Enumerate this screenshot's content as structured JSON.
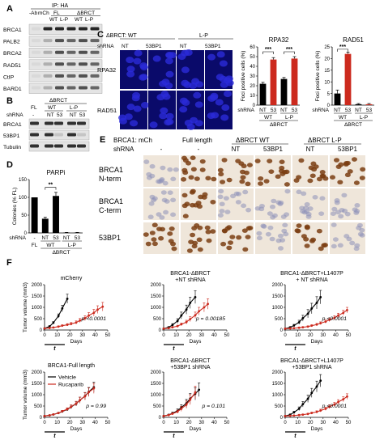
{
  "panels": {
    "a": "A",
    "b": "B",
    "c": "C",
    "d": "D",
    "e": "E",
    "f": "F"
  },
  "panel_a": {
    "ip_header": "IP: HA",
    "col_neg_ab": "-Ab",
    "col_mch": "mCh",
    "col_fl": "FL",
    "col_dbrct": "ΔBRCT",
    "col_wt1": "WT",
    "col_lp1": "L-P",
    "col_wt2": "WT",
    "col_lp2": "L-P",
    "rows": [
      "BRCA1",
      "PALB2",
      "BRCA2",
      "RAD51",
      "CtIP",
      "BARD1"
    ]
  },
  "panel_b": {
    "header_fl": "FL",
    "header_dbrct": "ΔBRCT",
    "header_wt": "WT",
    "header_lp": "L-P",
    "shrna_label": "shRNA",
    "shrna_cols": [
      "-",
      "NT",
      "53",
      "NT",
      "53"
    ],
    "rows": [
      "BRCA1",
      "53BP1",
      "Tubulin"
    ]
  },
  "panel_c_img": {
    "header_dbrct_wt": "ΔBRCT: WT",
    "header_lp": "L-P",
    "shrna_label": "shRNA",
    "shrna_cols": [
      "NT",
      "53BP1",
      "NT",
      "53BP1"
    ],
    "rows": [
      "RPA32",
      "RAD51"
    ]
  },
  "panel_e": {
    "brca1_label": "BRCA1:",
    "mch": "mCh",
    "full_length": "Full length",
    "dbrct_wt": "ΔBRCT WT",
    "dbrct_lp": "ΔBRCT L-P",
    "shrna_label": "shRNA",
    "shrna_cols": [
      "-",
      "-",
      "NT",
      "53BP1",
      "NT",
      "53BP1"
    ],
    "row1a": "BRCA1",
    "row1b": "N-term",
    "row2a": "BRCA1",
    "row2b": "C-term",
    "row3": "53BP1"
  },
  "chart_data": [
    {
      "id": "rpa32",
      "type": "bar",
      "title": "RPA32",
      "ylabel": "Foci positive cells (%)",
      "ylim": [
        0,
        60
      ],
      "yticks": [
        0,
        10,
        20,
        30,
        40,
        50,
        60
      ],
      "categories": [
        "NT",
        "53",
        "NT",
        "53"
      ],
      "values": [
        22,
        47,
        27,
        48
      ],
      "errors": [
        1.5,
        2,
        1.5,
        2
      ],
      "colors": [
        "#000000",
        "#cc2a1e",
        "#000000",
        "#cc2a1e"
      ],
      "group_labels": [
        "WT",
        "L-P"
      ],
      "shared_label": "ΔBRCT",
      "shrna_label": "shRNA",
      "significance": [
        "***",
        "***"
      ]
    },
    {
      "id": "rad51",
      "type": "bar",
      "title": "RAD51",
      "ylabel": "Foci positive cells (%)",
      "ylim": [
        0,
        25
      ],
      "yticks": [
        0,
        5,
        10,
        15,
        20,
        25
      ],
      "categories": [
        "NT",
        "53",
        "NT",
        "53"
      ],
      "values": [
        5,
        22,
        0.4,
        0.4
      ],
      "errors": [
        1.5,
        0.8,
        0.3,
        0.3
      ],
      "colors": [
        "#000000",
        "#cc2a1e",
        "#000000",
        "#cc2a1e"
      ],
      "group_labels": [
        "WT",
        "L-P"
      ],
      "shared_label": "ΔBRCT",
      "shrna_label": "shRNA",
      "significance": [
        "***"
      ]
    },
    {
      "id": "parpi",
      "type": "bar",
      "title": "PARPi",
      "ylabel": "Colonies (% FL)",
      "ylim": [
        0,
        150
      ],
      "yticks": [
        0,
        50,
        100,
        150
      ],
      "categories": [
        "-",
        "NT",
        "53",
        "NT",
        "53"
      ],
      "values": [
        100,
        40,
        104,
        1,
        1
      ],
      "errors": [
        0,
        4,
        10,
        0.5,
        0.5
      ],
      "colors": [
        "#000000",
        "#000000",
        "#000000",
        "#000000",
        "#000000"
      ],
      "fl_label": "FL",
      "group_labels": [
        "WT",
        "L-P"
      ],
      "shared_label": "ΔBRCT",
      "shrna_label": "shRNA",
      "significance": [
        "**"
      ]
    },
    {
      "id": "f1",
      "type": "line",
      "title": "mCherry",
      "ylabel": "Tumor volume (mm3)",
      "xlabel": "Days",
      "xlim": [
        0,
        50
      ],
      "ylim": [
        0,
        2000
      ],
      "xticks": [
        0,
        10,
        20,
        30,
        40,
        50
      ],
      "yticks": [
        0,
        500,
        1000,
        1500,
        2000
      ],
      "treatment_label": "t",
      "pvalue": "p <0.0001",
      "series": [
        {
          "color": "#000000",
          "x": [
            0,
            4,
            7,
            11,
            14,
            18
          ],
          "y": [
            70,
            160,
            320,
            620,
            950,
            1380
          ],
          "err": [
            10,
            30,
            50,
            90,
            140,
            200
          ]
        },
        {
          "color": "#cc2a1e",
          "x": [
            0,
            4,
            7,
            11,
            14,
            18,
            21,
            25,
            28,
            32,
            35,
            39,
            42,
            46
          ],
          "y": [
            70,
            90,
            110,
            150,
            190,
            230,
            270,
            330,
            420,
            520,
            640,
            760,
            900,
            1030
          ],
          "err": [
            10,
            15,
            20,
            30,
            40,
            50,
            60,
            70,
            90,
            110,
            130,
            150,
            170,
            190
          ]
        }
      ]
    },
    {
      "id": "f2",
      "type": "line",
      "title": "BRCA1-ΔBRCT\n+NT shRNA",
      "xlabel": "Days",
      "xlim": [
        0,
        50
      ],
      "ylim": [
        0,
        2000
      ],
      "xticks": [
        0,
        10,
        20,
        30,
        40,
        50
      ],
      "yticks": [
        0,
        500,
        1000,
        1500,
        2000
      ],
      "treatment_label": "t",
      "pvalue": "p = 0.00185",
      "series": [
        {
          "color": "#000000",
          "x": [
            0,
            4,
            7,
            11,
            14,
            18,
            21,
            25
          ],
          "y": [
            60,
            120,
            220,
            400,
            640,
            900,
            1200,
            1450
          ],
          "err": [
            10,
            30,
            60,
            100,
            150,
            200,
            250,
            280
          ]
        },
        {
          "color": "#cc2a1e",
          "x": [
            0,
            4,
            7,
            11,
            14,
            18,
            21,
            25,
            28,
            32,
            35
          ],
          "y": [
            60,
            80,
            120,
            170,
            250,
            350,
            480,
            650,
            830,
            1000,
            1150
          ],
          "err": [
            10,
            15,
            25,
            40,
            60,
            80,
            110,
            140,
            170,
            200,
            230
          ]
        }
      ]
    },
    {
      "id": "f3",
      "type": "line",
      "title": "BRCA1-ΔBRCT+L1407P\n+ NT shRNA",
      "xlabel": "Days",
      "xlim": [
        0,
        50
      ],
      "ylim": [
        0,
        2000
      ],
      "xticks": [
        0,
        10,
        20,
        30,
        40,
        50
      ],
      "yticks": [
        0,
        500,
        1000,
        1500,
        2000
      ],
      "treatment_label": "t",
      "pvalue": "p <0.0001",
      "series": [
        {
          "color": "#000000",
          "x": [
            0,
            4,
            7,
            11,
            14,
            18,
            21,
            25,
            28
          ],
          "y": [
            60,
            120,
            200,
            340,
            520,
            720,
            950,
            1200,
            1450
          ],
          "err": [
            10,
            25,
            50,
            90,
            130,
            180,
            230,
            270,
            300
          ]
        },
        {
          "color": "#cc2a1e",
          "x": [
            0,
            4,
            7,
            11,
            14,
            18,
            21,
            25,
            28,
            32,
            35,
            39,
            42,
            46,
            49
          ],
          "y": [
            60,
            70,
            80,
            100,
            120,
            150,
            190,
            240,
            300,
            370,
            450,
            540,
            640,
            760,
            880
          ],
          "err": [
            10,
            10,
            15,
            20,
            25,
            30,
            40,
            50,
            60,
            70,
            80,
            90,
            100,
            110,
            120
          ]
        }
      ]
    },
    {
      "id": "f4",
      "type": "line",
      "title": "BRCA1-Full length",
      "ylabel": "Tumor volume (mm3)",
      "xlabel": "Days",
      "xlim": [
        0,
        50
      ],
      "ylim": [
        0,
        2000
      ],
      "xticks": [
        0,
        10,
        20,
        30,
        40,
        50
      ],
      "yticks": [
        0,
        500,
        1000,
        1500,
        2000
      ],
      "treatment_label": "t",
      "pvalue": "p = 0.99",
      "legend": [
        "Vehicle",
        "Rucaparib"
      ],
      "series": [
        {
          "name": "Vehicle",
          "color": "#000000",
          "x": [
            0,
            4,
            7,
            11,
            14,
            18,
            21,
            25,
            28,
            32,
            35,
            39
          ],
          "y": [
            60,
            90,
            130,
            190,
            260,
            350,
            460,
            600,
            760,
            940,
            1130,
            1330
          ],
          "err": [
            10,
            15,
            20,
            30,
            40,
            60,
            80,
            100,
            130,
            160,
            190,
            220
          ]
        },
        {
          "name": "Rucaparib",
          "color": "#cc2a1e",
          "x": [
            0,
            4,
            7,
            11,
            14,
            18,
            21,
            25,
            28,
            32,
            35,
            39
          ],
          "y": [
            60,
            90,
            130,
            190,
            270,
            360,
            470,
            610,
            760,
            930,
            1110,
            1280
          ],
          "err": [
            10,
            15,
            20,
            30,
            40,
            60,
            80,
            100,
            130,
            160,
            190,
            220
          ]
        }
      ]
    },
    {
      "id": "f5",
      "type": "line",
      "title": "BRCA1-ΔBRCT\n+53BP1 shRNA",
      "xlabel": "Days",
      "xlim": [
        0,
        50
      ],
      "ylim": [
        0,
        2000
      ],
      "xticks": [
        0,
        10,
        20,
        30,
        40,
        50
      ],
      "yticks": [
        0,
        500,
        1000,
        1500,
        2000
      ],
      "treatment_label": "t",
      "pvalue": "p = 0.101",
      "series": [
        {
          "color": "#000000",
          "x": [
            0,
            4,
            7,
            11,
            14,
            18,
            21,
            25,
            28
          ],
          "y": [
            60,
            110,
            180,
            290,
            440,
            620,
            830,
            1040,
            1220
          ],
          "err": [
            10,
            25,
            50,
            80,
            120,
            170,
            220,
            270,
            300
          ]
        },
        {
          "color": "#cc2a1e",
          "x": [
            0,
            4,
            7,
            11,
            14,
            18,
            21,
            25
          ],
          "y": [
            60,
            100,
            160,
            250,
            380,
            560,
            780,
            1100
          ],
          "err": [
            10,
            20,
            40,
            70,
            110,
            160,
            220,
            280
          ]
        }
      ]
    },
    {
      "id": "f6",
      "type": "line",
      "title": "BRCA1-ΔBRCT+L1407P\n+53BP1 shRNA",
      "xlabel": "Days",
      "xlim": [
        0,
        50
      ],
      "ylim": [
        0,
        2000
      ],
      "xticks": [
        0,
        10,
        20,
        30,
        40,
        50
      ],
      "yticks": [
        0,
        500,
        1000,
        1500,
        2000
      ],
      "treatment_label": "t",
      "pvalue": "p <0.0001",
      "series": [
        {
          "color": "#000000",
          "x": [
            0,
            4,
            7,
            11,
            14,
            18,
            21,
            25,
            28
          ],
          "y": [
            60,
            120,
            220,
            380,
            580,
            820,
            1080,
            1360,
            1620
          ],
          "err": [
            10,
            25,
            50,
            80,
            120,
            160,
            200,
            240,
            270
          ]
        },
        {
          "color": "#cc2a1e",
          "x": [
            0,
            4,
            7,
            11,
            14,
            18,
            21,
            25,
            28,
            32,
            35,
            39,
            42,
            46,
            49
          ],
          "y": [
            60,
            70,
            80,
            100,
            120,
            150,
            190,
            240,
            300,
            380,
            470,
            570,
            680,
            800,
            920
          ],
          "err": [
            10,
            10,
            15,
            20,
            25,
            30,
            40,
            50,
            60,
            70,
            80,
            90,
            100,
            110,
            120
          ]
        }
      ]
    }
  ]
}
